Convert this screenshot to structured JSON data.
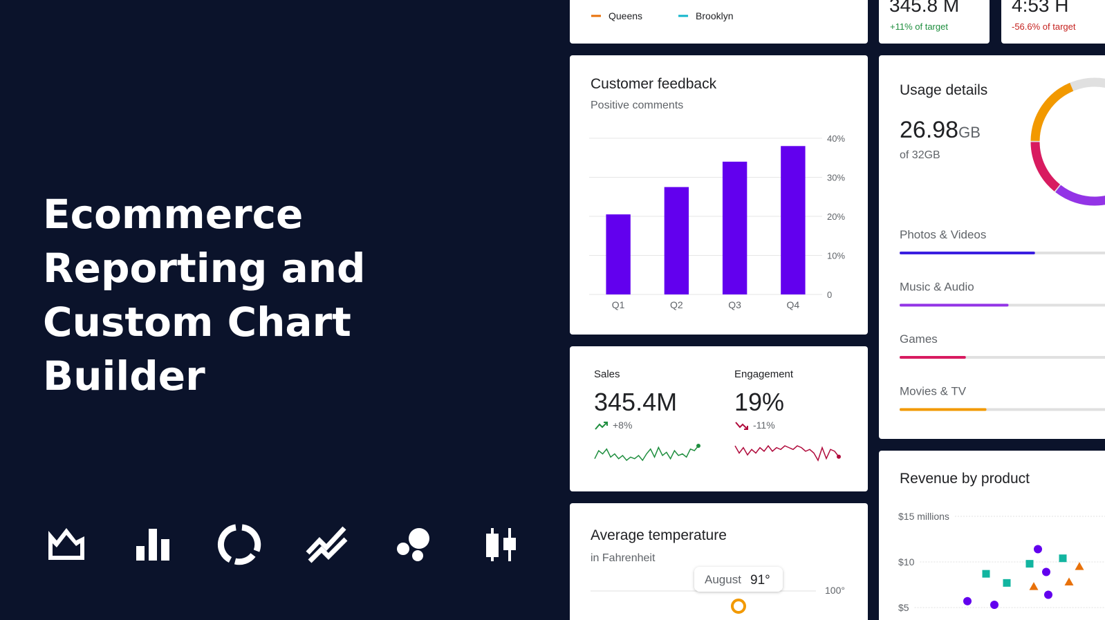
{
  "hero": {
    "title_lines": [
      "Ecommerce",
      "Reporting and",
      "Custom Chart",
      "Builder"
    ]
  },
  "legend_card": {
    "legend": [
      {
        "name": "Queens",
        "color": "#e8710a"
      },
      {
        "name": "Brooklyn",
        "color": "#12b5cb"
      }
    ]
  },
  "kpis": [
    {
      "value": "345.8 M",
      "note": "+11% of target",
      "note_color": "#1e8e3e"
    },
    {
      "value": "4:53 H",
      "note": "-56.6% of target",
      "note_color": "#c5221f"
    }
  ],
  "feedback": {
    "title": "Customer feedback",
    "subtitle": "Positive comments",
    "chart_data": {
      "type": "bar",
      "categories": [
        "Q1",
        "Q2",
        "Q3",
        "Q4"
      ],
      "values": [
        20.5,
        27.5,
        34,
        38
      ],
      "color": "#6200ee",
      "ylim": [
        0,
        40
      ],
      "yticks": [
        0,
        {
          "value": 10,
          "label": "10%"
        },
        {
          "value": 20,
          "label": "20%"
        },
        {
          "value": 30,
          "label": "30%"
        },
        {
          "value": 40,
          "label": "40%"
        }
      ],
      "grid": true
    }
  },
  "stats": [
    {
      "label": "Sales",
      "value": "345.4M",
      "change": "+8%",
      "trend": "up",
      "color": "#1e8e3e",
      "chart_data": {
        "type": "line",
        "values": [
          3,
          8,
          6,
          9,
          4,
          6,
          3,
          5,
          2,
          4,
          3,
          5,
          2,
          6,
          9,
          4,
          10,
          5,
          7,
          3,
          8,
          5,
          6,
          4,
          9,
          8,
          11
        ]
      }
    },
    {
      "label": "Engagement",
      "value": "19%",
      "change": "-11%",
      "trend": "down",
      "color": "#b00b3c",
      "chart_data": {
        "type": "line",
        "values": [
          9,
          5,
          8,
          4,
          7,
          5,
          8,
          6,
          9,
          6,
          8,
          7,
          9,
          8,
          7,
          9,
          8,
          6,
          7,
          5,
          1,
          8,
          2,
          7,
          6,
          3
        ]
      }
    }
  ],
  "temperature": {
    "title": "Average temperature",
    "subtitle": "in Fahrenheit",
    "tooltip": {
      "month": "August",
      "value": "91°"
    },
    "top_tick": "100°"
  },
  "usage": {
    "title": "Usage details",
    "used": "26.98",
    "unit": "GB",
    "total_text": "of 32GB",
    "xlim": [
      0,
      32
    ],
    "track_color": "#e0e0e0",
    "items": [
      {
        "name": "Photos & Videos",
        "value": 9.2,
        "color": "#3a1ee0"
      },
      {
        "name": "Music & Audio",
        "value": 7.4,
        "color": "#9334e6"
      },
      {
        "name": "Games",
        "value": 4.5,
        "color": "#d81b60"
      },
      {
        "name": "Movies & TV",
        "value": 5.9,
        "color": "#f29900"
      }
    ]
  },
  "revenue": {
    "title": "Revenue by product",
    "chart_data": {
      "type": "scatter",
      "xlim": [
        0,
        10
      ],
      "ylim": [
        5,
        15
      ],
      "yticks": [
        {
          "value": 15,
          "label": "$15 millions"
        },
        {
          "value": 10,
          "label": "$10"
        },
        {
          "value": 5,
          "label": "$5"
        }
      ],
      "series": [
        {
          "color": "#6200ee",
          "marker": "circle",
          "x": [
            6.7,
            7.1,
            3.3,
            4.6,
            7.2
          ],
          "values": [
            11.4,
            8.9,
            5.7,
            5.3,
            6.4
          ]
        },
        {
          "color": "#12b5a0",
          "marker": "square",
          "x": [
            4.2,
            5.2,
            6.3,
            7.9
          ],
          "values": [
            8.7,
            7.7,
            9.8,
            10.4
          ]
        },
        {
          "color": "#e8710a",
          "marker": "triangle",
          "x": [
            6.5,
            8.2,
            8.7
          ],
          "values": [
            7.3,
            7.8,
            9.5
          ]
        }
      ]
    }
  }
}
